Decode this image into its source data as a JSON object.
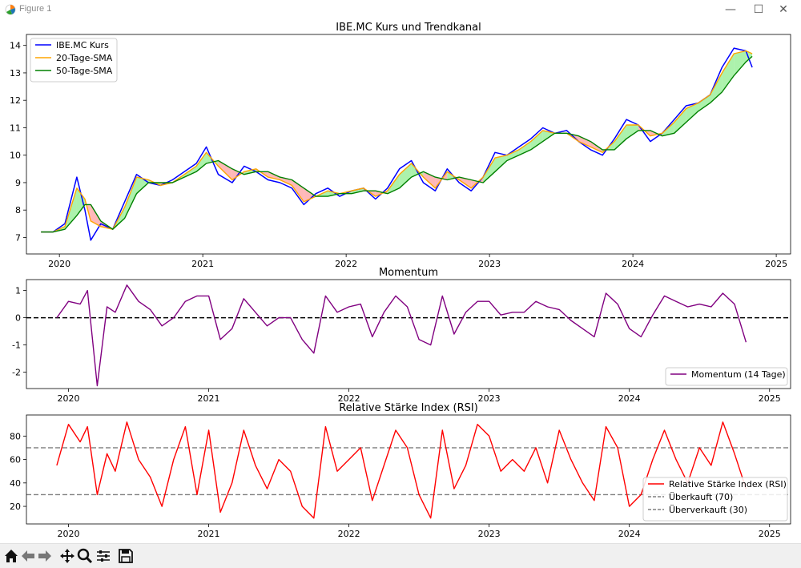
{
  "window": {
    "title": "Figure 1",
    "minimize": "—",
    "maximize": "☐",
    "close": "✕"
  },
  "toolbar": {
    "items": [
      "home-icon",
      "back-icon",
      "forward-icon",
      "pan-icon",
      "zoom-icon",
      "configure-icon",
      "save-icon"
    ]
  },
  "colors": {
    "price": "#0000ff",
    "sma20": "#ffa500",
    "sma50": "#008000",
    "momentum": "#800080",
    "rsi": "#ff0000",
    "fill_up": "#90ee90",
    "fill_down": "#ffa0a0",
    "ref_line": "#808080"
  },
  "chart_data": [
    {
      "type": "line",
      "title": "IBE.MC Kurs und Trendkanal",
      "x_ticks": [
        "2020",
        "2021",
        "2022",
        "2023",
        "2024",
        "2025"
      ],
      "x_range": [
        "2019-11",
        "2025-02"
      ],
      "ylim": [
        6.4,
        14.4
      ],
      "y_ticks": [
        7,
        8,
        9,
        10,
        11,
        12,
        13,
        14
      ],
      "legend": {
        "placement": "top-left",
        "entries": [
          "IBE.MC Kurs",
          "20-Tage-SMA",
          "50-Tage-SMA"
        ]
      },
      "series": [
        {
          "name": "IBE.MC Kurs",
          "x": [
            "2019-11-15",
            "2019-12-15",
            "2020-01-15",
            "2020-02-15",
            "2020-03-05",
            "2020-03-20",
            "2020-04-15",
            "2020-05-15",
            "2020-06-15",
            "2020-07-15",
            "2020-08-15",
            "2020-09-15",
            "2020-10-15",
            "2020-11-15",
            "2020-12-15",
            "2021-01-10",
            "2021-02-10",
            "2021-03-15",
            "2021-04-15",
            "2021-05-15",
            "2021-06-15",
            "2021-07-15",
            "2021-08-15",
            "2021-09-15",
            "2021-10-15",
            "2021-11-15",
            "2021-12-15",
            "2022-01-15",
            "2022-02-15",
            "2022-03-15",
            "2022-04-15",
            "2022-05-15",
            "2022-06-15",
            "2022-07-15",
            "2022-08-15",
            "2022-09-15",
            "2022-10-15",
            "2022-11-15",
            "2022-12-15",
            "2023-01-15",
            "2023-02-15",
            "2023-03-15",
            "2023-04-15",
            "2023-05-15",
            "2023-06-15",
            "2023-07-15",
            "2023-08-15",
            "2023-09-15",
            "2023-10-15",
            "2023-11-15",
            "2023-12-15",
            "2024-01-15",
            "2024-02-15",
            "2024-03-15",
            "2024-04-15",
            "2024-05-15",
            "2024-06-15",
            "2024-07-15",
            "2024-08-15",
            "2024-09-15",
            "2024-10-15",
            "2024-10-31"
          ],
          "values": [
            7.2,
            7.2,
            7.5,
            9.2,
            8.0,
            6.9,
            7.5,
            7.3,
            8.3,
            9.3,
            9.0,
            8.9,
            9.1,
            9.4,
            9.7,
            10.3,
            9.3,
            9.0,
            9.6,
            9.4,
            9.1,
            9.0,
            8.8,
            8.2,
            8.6,
            8.8,
            8.5,
            8.7,
            8.8,
            8.4,
            8.8,
            9.5,
            9.8,
            9.0,
            8.7,
            9.5,
            9.0,
            8.7,
            9.2,
            10.1,
            10.0,
            10.3,
            10.6,
            11.0,
            10.8,
            10.9,
            10.5,
            10.2,
            10.0,
            10.6,
            11.3,
            11.1,
            10.5,
            10.8,
            11.3,
            11.8,
            11.9,
            12.2,
            13.2,
            13.9,
            13.8,
            13.2
          ]
        },
        {
          "name": "20-Tage-SMA",
          "x": [
            "2019-11-15",
            "2019-12-15",
            "2020-01-15",
            "2020-02-15",
            "2020-03-05",
            "2020-03-20",
            "2020-04-15",
            "2020-05-15",
            "2020-06-15",
            "2020-07-15",
            "2020-08-15",
            "2020-09-15",
            "2020-10-15",
            "2020-11-15",
            "2020-12-15",
            "2021-01-10",
            "2021-02-10",
            "2021-03-15",
            "2021-04-15",
            "2021-05-15",
            "2021-06-15",
            "2021-07-15",
            "2021-08-15",
            "2021-09-15",
            "2021-10-15",
            "2021-11-15",
            "2021-12-15",
            "2022-01-15",
            "2022-02-15",
            "2022-03-15",
            "2022-04-15",
            "2022-05-15",
            "2022-06-15",
            "2022-07-15",
            "2022-08-15",
            "2022-09-15",
            "2022-10-15",
            "2022-11-15",
            "2022-12-15",
            "2023-01-15",
            "2023-02-15",
            "2023-03-15",
            "2023-04-15",
            "2023-05-15",
            "2023-06-15",
            "2023-07-15",
            "2023-08-15",
            "2023-09-15",
            "2023-10-15",
            "2023-11-15",
            "2023-12-15",
            "2024-01-15",
            "2024-02-15",
            "2024-03-15",
            "2024-04-15",
            "2024-05-15",
            "2024-06-15",
            "2024-07-15",
            "2024-08-15",
            "2024-09-15",
            "2024-10-15",
            "2024-10-31"
          ],
          "values": [
            7.2,
            7.2,
            7.4,
            8.8,
            8.4,
            7.6,
            7.4,
            7.3,
            8.1,
            9.2,
            9.1,
            8.9,
            9.0,
            9.3,
            9.6,
            10.1,
            9.6,
            9.1,
            9.4,
            9.5,
            9.2,
            9.1,
            8.9,
            8.3,
            8.5,
            8.7,
            8.6,
            8.7,
            8.8,
            8.5,
            8.7,
            9.3,
            9.7,
            9.2,
            8.8,
            9.4,
            9.1,
            8.8,
            9.2,
            9.9,
            10.0,
            10.2,
            10.5,
            10.9,
            10.8,
            10.8,
            10.5,
            10.3,
            10.1,
            10.5,
            11.1,
            11.1,
            10.7,
            10.8,
            11.2,
            11.7,
            11.9,
            12.2,
            13.0,
            13.7,
            13.8,
            13.7
          ]
        },
        {
          "name": "50-Tage-SMA",
          "x": [
            "2019-11-15",
            "2019-12-15",
            "2020-01-15",
            "2020-02-15",
            "2020-03-05",
            "2020-03-20",
            "2020-04-15",
            "2020-05-15",
            "2020-06-15",
            "2020-07-15",
            "2020-08-15",
            "2020-09-15",
            "2020-10-15",
            "2020-11-15",
            "2020-12-15",
            "2021-01-10",
            "2021-02-10",
            "2021-03-15",
            "2021-04-15",
            "2021-05-15",
            "2021-06-15",
            "2021-07-15",
            "2021-08-15",
            "2021-09-15",
            "2021-10-15",
            "2021-11-15",
            "2021-12-15",
            "2022-01-15",
            "2022-02-15",
            "2022-03-15",
            "2022-04-15",
            "2022-05-15",
            "2022-06-15",
            "2022-07-15",
            "2022-08-15",
            "2022-09-15",
            "2022-10-15",
            "2022-11-15",
            "2022-12-15",
            "2023-01-15",
            "2023-02-15",
            "2023-03-15",
            "2023-04-15",
            "2023-05-15",
            "2023-06-15",
            "2023-07-15",
            "2023-08-15",
            "2023-09-15",
            "2023-10-15",
            "2023-11-15",
            "2023-12-15",
            "2024-01-15",
            "2024-02-15",
            "2024-03-15",
            "2024-04-15",
            "2024-05-15",
            "2024-06-15",
            "2024-07-15",
            "2024-08-15",
            "2024-09-15",
            "2024-10-15",
            "2024-10-31"
          ],
          "values": [
            7.2,
            7.2,
            7.3,
            7.8,
            8.2,
            8.2,
            7.6,
            7.3,
            7.7,
            8.6,
            9.0,
            9.0,
            9.0,
            9.2,
            9.4,
            9.7,
            9.8,
            9.5,
            9.3,
            9.4,
            9.4,
            9.2,
            9.1,
            8.8,
            8.5,
            8.5,
            8.6,
            8.6,
            8.7,
            8.7,
            8.6,
            8.8,
            9.2,
            9.4,
            9.2,
            9.1,
            9.2,
            9.1,
            9.0,
            9.4,
            9.8,
            10.0,
            10.2,
            10.5,
            10.8,
            10.8,
            10.7,
            10.5,
            10.2,
            10.2,
            10.6,
            10.9,
            10.9,
            10.7,
            10.8,
            11.2,
            11.6,
            11.9,
            12.3,
            12.9,
            13.4,
            13.6
          ]
        }
      ]
    },
    {
      "type": "line",
      "title": "Momentum",
      "x_ticks": [
        "2020",
        "2021",
        "2022",
        "2023",
        "2024",
        "2025"
      ],
      "ylim": [
        -2.6,
        1.4
      ],
      "y_ticks": [
        -2,
        -1,
        0,
        1
      ],
      "zero_line": 0,
      "legend": {
        "placement": "bottom-right",
        "entries": [
          "Momentum (14 Tage)"
        ]
      },
      "series": [
        {
          "name": "Momentum (14 Tage)",
          "x": [
            "2019-12-01",
            "2020-01-01",
            "2020-02-01",
            "2020-02-20",
            "2020-03-15",
            "2020-04-10",
            "2020-05-01",
            "2020-06-01",
            "2020-07-01",
            "2020-08-01",
            "2020-09-01",
            "2020-10-01",
            "2020-11-01",
            "2020-12-01",
            "2021-01-01",
            "2021-02-01",
            "2021-03-01",
            "2021-04-01",
            "2021-05-01",
            "2021-06-01",
            "2021-07-01",
            "2021-08-01",
            "2021-09-01",
            "2021-10-01",
            "2021-11-01",
            "2021-12-01",
            "2022-01-01",
            "2022-02-01",
            "2022-03-01",
            "2022-04-01",
            "2022-05-01",
            "2022-06-01",
            "2022-07-01",
            "2022-08-01",
            "2022-09-01",
            "2022-10-01",
            "2022-11-01",
            "2022-12-01",
            "2023-01-01",
            "2023-02-01",
            "2023-03-01",
            "2023-04-01",
            "2023-05-01",
            "2023-06-01",
            "2023-07-01",
            "2023-08-01",
            "2023-09-01",
            "2023-10-01",
            "2023-11-01",
            "2023-12-01",
            "2024-01-01",
            "2024-02-01",
            "2024-03-01",
            "2024-04-01",
            "2024-05-01",
            "2024-06-01",
            "2024-07-01",
            "2024-08-01",
            "2024-09-01",
            "2024-10-01",
            "2024-10-31"
          ],
          "values": [
            0,
            0.6,
            0.5,
            1.0,
            -2.5,
            0.4,
            0.2,
            1.2,
            0.6,
            0.3,
            -0.3,
            0,
            0.6,
            0.8,
            0.8,
            -0.8,
            -0.4,
            0.7,
            0.2,
            -0.3,
            0,
            0,
            -0.8,
            -1.3,
            0.8,
            0.2,
            0.4,
            0.5,
            -0.7,
            0.2,
            0.8,
            0.4,
            -0.8,
            -1.0,
            0.8,
            -0.6,
            0.2,
            0.6,
            0.6,
            0.1,
            0.2,
            0.2,
            0.6,
            0.4,
            0.3,
            -0.1,
            -0.4,
            -0.7,
            0.9,
            0.5,
            -0.4,
            -0.7,
            0.1,
            0.8,
            0.6,
            0.4,
            0.5,
            0.4,
            0.9,
            0.5,
            -0.9
          ]
        }
      ]
    },
    {
      "type": "line",
      "title": "Relative Stärke Index (RSI)",
      "x_ticks": [
        "2020",
        "2021",
        "2022",
        "2023",
        "2024",
        "2025"
      ],
      "ylim": [
        5,
        98
      ],
      "y_ticks": [
        20,
        40,
        60,
        80
      ],
      "ref_lines": [
        70,
        30
      ],
      "legend": {
        "placement": "bottom-right",
        "entries": [
          "Relative Stärke Index (RSI)",
          "Überkauft (70)",
          "Überverkauft (30)"
        ]
      },
      "series": [
        {
          "name": "Relative Stärke Index (RSI)",
          "x": [
            "2019-12-01",
            "2020-01-01",
            "2020-02-01",
            "2020-02-20",
            "2020-03-15",
            "2020-04-10",
            "2020-05-01",
            "2020-06-01",
            "2020-07-01",
            "2020-08-01",
            "2020-09-01",
            "2020-10-01",
            "2020-11-01",
            "2020-12-01",
            "2021-01-01",
            "2021-02-01",
            "2021-03-01",
            "2021-04-01",
            "2021-05-01",
            "2021-06-01",
            "2021-07-01",
            "2021-08-01",
            "2021-09-01",
            "2021-10-01",
            "2021-11-01",
            "2021-12-01",
            "2022-01-01",
            "2022-02-01",
            "2022-03-01",
            "2022-04-01",
            "2022-05-01",
            "2022-06-01",
            "2022-07-01",
            "2022-08-01",
            "2022-09-01",
            "2022-10-01",
            "2022-11-01",
            "2022-12-01",
            "2023-01-01",
            "2023-02-01",
            "2023-03-01",
            "2023-04-01",
            "2023-05-01",
            "2023-06-01",
            "2023-07-01",
            "2023-08-01",
            "2023-09-01",
            "2023-10-01",
            "2023-11-01",
            "2023-12-01",
            "2024-01-01",
            "2024-02-01",
            "2024-03-01",
            "2024-04-01",
            "2024-05-01",
            "2024-06-01",
            "2024-07-01",
            "2024-08-01",
            "2024-09-01",
            "2024-10-01",
            "2024-10-31"
          ],
          "values": [
            55,
            90,
            75,
            88,
            30,
            65,
            50,
            92,
            60,
            45,
            20,
            60,
            88,
            30,
            85,
            15,
            40,
            85,
            55,
            35,
            60,
            50,
            20,
            10,
            88,
            50,
            60,
            70,
            25,
            55,
            85,
            70,
            30,
            10,
            85,
            35,
            55,
            90,
            80,
            50,
            60,
            50,
            70,
            40,
            85,
            60,
            40,
            25,
            88,
            70,
            20,
            30,
            60,
            85,
            60,
            40,
            70,
            55,
            92,
            65,
            35
          ]
        }
      ]
    }
  ]
}
